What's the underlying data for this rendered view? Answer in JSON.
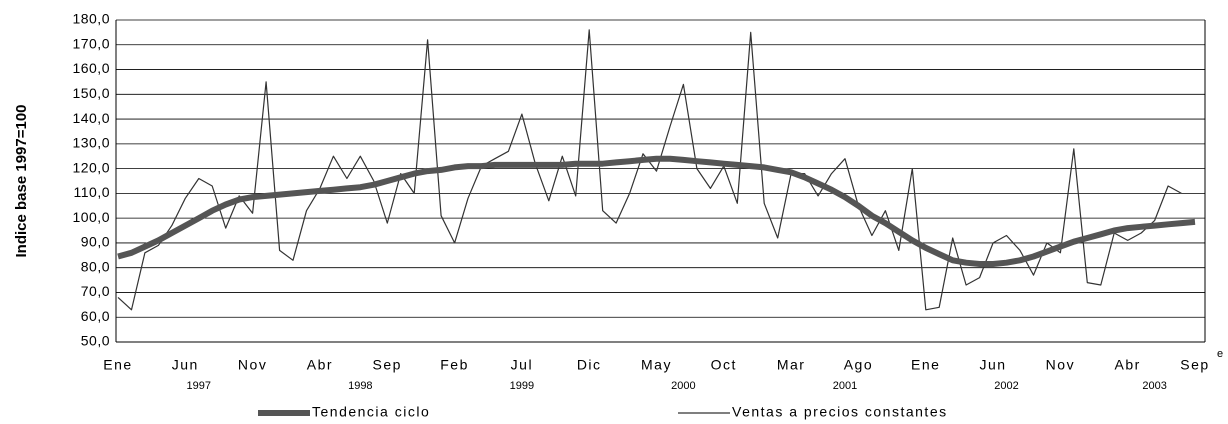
{
  "chart_data": {
    "type": "line",
    "y_label": "Indice base 1997=100",
    "categories": [
      "Ene",
      null,
      null,
      null,
      null,
      "Jun",
      null,
      null,
      null,
      null,
      "Nov",
      null,
      null,
      null,
      null,
      "Abr",
      null,
      null,
      null,
      null,
      "Sep",
      null,
      null,
      null,
      null,
      "Feb",
      null,
      null,
      null,
      null,
      "Jul",
      null,
      null,
      null,
      null,
      "Dic",
      null,
      null,
      null,
      null,
      "May",
      null,
      null,
      null,
      null,
      "Oct",
      null,
      null,
      null,
      null,
      "Mar",
      null,
      null,
      null,
      null,
      "Ago",
      null,
      null,
      null,
      null,
      "Ene",
      null,
      null,
      null,
      null,
      "Jun",
      null,
      null,
      null,
      null,
      "Nov",
      null,
      null,
      null,
      null,
      "Abr",
      null,
      null,
      null,
      null,
      "Sep"
    ],
    "years": [
      "1997",
      "1998",
      "1999",
      "2000",
      "2001",
      "2002",
      "2003"
    ],
    "annotation": "e",
    "series": [
      {
        "name": "Tendencia ciclo",
        "color": "#555555",
        "width": 6,
        "values": [
          84.5,
          86,
          88.5,
          91,
          94,
          97,
          100,
          103,
          105.5,
          107.5,
          108.5,
          109,
          109.5,
          110,
          110.5,
          111,
          111.5,
          112,
          112.5,
          113.5,
          115,
          116.5,
          118,
          119,
          119.5,
          120.5,
          121,
          121,
          121.5,
          121.5,
          121.5,
          121.5,
          121.5,
          121.5,
          122,
          122,
          122,
          122.5,
          123,
          123.5,
          124,
          124,
          123.5,
          123,
          122.5,
          122,
          121.5,
          121,
          120.5,
          119.5,
          118.5,
          116.5,
          114,
          111.5,
          108.5,
          105,
          101,
          98,
          94.5,
          91,
          88,
          85.5,
          83,
          82,
          81.5,
          81.5,
          82,
          83,
          84.5,
          86.5,
          88.5,
          90.5,
          92,
          93.5,
          95,
          96,
          96.5,
          97,
          97.5,
          98,
          98.5
        ]
      },
      {
        "name": "Ventas a precios constantes",
        "color": "#333333",
        "width": 1.2,
        "values": [
          68,
          63,
          86,
          89,
          97,
          108,
          116,
          113,
          96,
          109,
          102,
          155,
          87,
          83,
          103,
          112,
          125,
          116,
          125,
          115,
          98,
          118,
          110,
          172,
          101,
          90,
          108,
          121,
          124,
          127,
          142,
          122,
          107,
          125,
          109,
          176,
          103,
          98,
          110,
          126,
          119,
          137,
          154,
          120,
          112,
          121,
          106,
          175,
          106,
          92,
          118,
          118,
          109,
          118,
          124,
          105,
          93,
          103,
          87,
          120,
          63,
          64,
          92,
          73,
          76,
          90,
          93,
          87,
          77,
          90,
          86,
          128,
          74,
          73,
          94,
          91,
          94,
          99,
          113,
          110,
          null
        ]
      }
    ],
    "ylim": [
      50,
      180
    ],
    "yticks": [
      {
        "value": 50,
        "label": "50,0"
      },
      {
        "value": 60,
        "label": "60,0"
      },
      {
        "value": 70,
        "label": "70,0"
      },
      {
        "value": 80,
        "label": "80,0"
      },
      {
        "value": 90,
        "label": "90,0"
      },
      {
        "value": 100,
        "label": "100,0"
      },
      {
        "value": 110,
        "label": "110,0"
      },
      {
        "value": 120,
        "label": "120,0"
      },
      {
        "value": 130,
        "label": "130,0"
      },
      {
        "value": 140,
        "label": "140,0"
      },
      {
        "value": 150,
        "label": "150,0"
      },
      {
        "value": 160,
        "label": "160,0"
      },
      {
        "value": 170,
        "label": "170,0"
      },
      {
        "value": 180,
        "label": "180,0"
      }
    ],
    "grid": true
  }
}
